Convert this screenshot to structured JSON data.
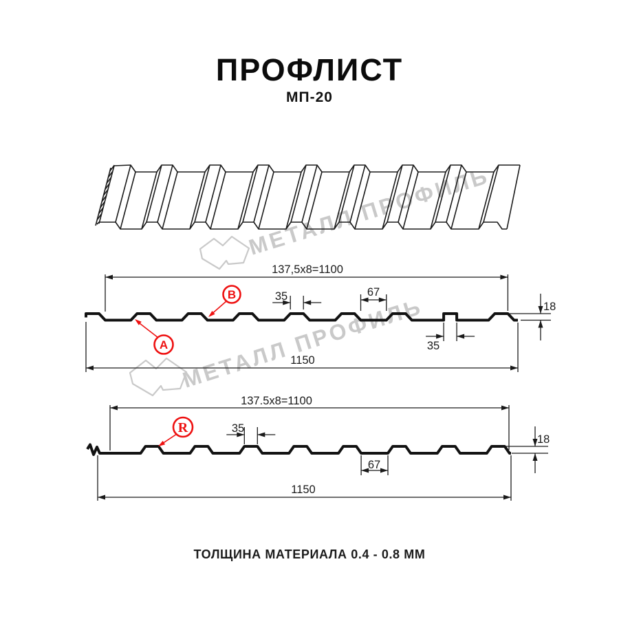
{
  "page": {
    "title": "ПРОФЛИСТ",
    "subtitle": "МП-20",
    "footer_note": "ТОЛЩИНА МАТЕРИАЛА 0.4 - 0.8 ММ"
  },
  "watermark": {
    "text": "МЕТАЛЛ ПРОФИЛЬ",
    "logo": "metal-profil-logo"
  },
  "colors": {
    "ink": "#1a1a1a",
    "profile_stroke": "#121212",
    "accent_red": "#ee1111",
    "watermark_gray": "#c9c9c9"
  },
  "diagram": {
    "type": "technical-drawing",
    "product": "МП-20",
    "sections": [
      {
        "name": "profile-top-view",
        "pitch_label": "137,5x8=1100",
        "crest_width_label": "35",
        "valley_width_label": "67",
        "height_label": "18",
        "lap_rib_label": "35",
        "overall_width_label": "1150",
        "markers": [
          "B",
          "A"
        ]
      },
      {
        "name": "profile-bottom-view",
        "pitch_label": "137.5x8=1100",
        "crest_width_label": "35",
        "valley_width_label": "67",
        "height_label": "18",
        "overall_width_label": "1150",
        "markers": [
          "R"
        ]
      }
    ]
  }
}
